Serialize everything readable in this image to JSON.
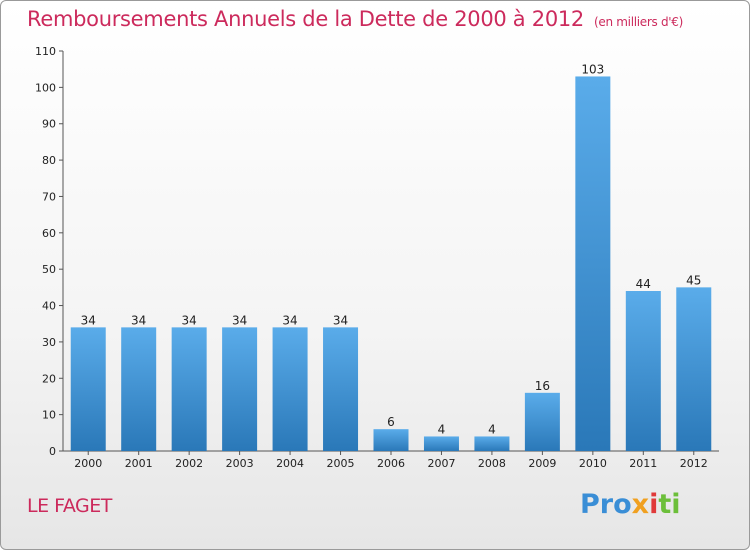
{
  "title": "Remboursements Annuels de la Dette de 2000 à 2012",
  "unit": "(en milliers d'€)",
  "commune": "LE FAGET",
  "logo": {
    "p1": "Pro",
    "p2": "x",
    "p3": "i",
    "p4": "ti"
  },
  "colors": {
    "title": "#cc2a5c",
    "bar_top": "#5aacea",
    "bar_bottom": "#2a78b8"
  },
  "chart_data": {
    "type": "bar",
    "categories": [
      "2000",
      "2001",
      "2002",
      "2003",
      "2004",
      "2005",
      "2006",
      "2007",
      "2008",
      "2009",
      "2010",
      "2011",
      "2012"
    ],
    "values": [
      34,
      34,
      34,
      34,
      34,
      34,
      6,
      4,
      4,
      16,
      103,
      44,
      45
    ],
    "ylim": [
      0,
      110
    ],
    "yticks": [
      0,
      10,
      20,
      30,
      40,
      50,
      60,
      70,
      80,
      90,
      100,
      110
    ],
    "grid": false
  }
}
